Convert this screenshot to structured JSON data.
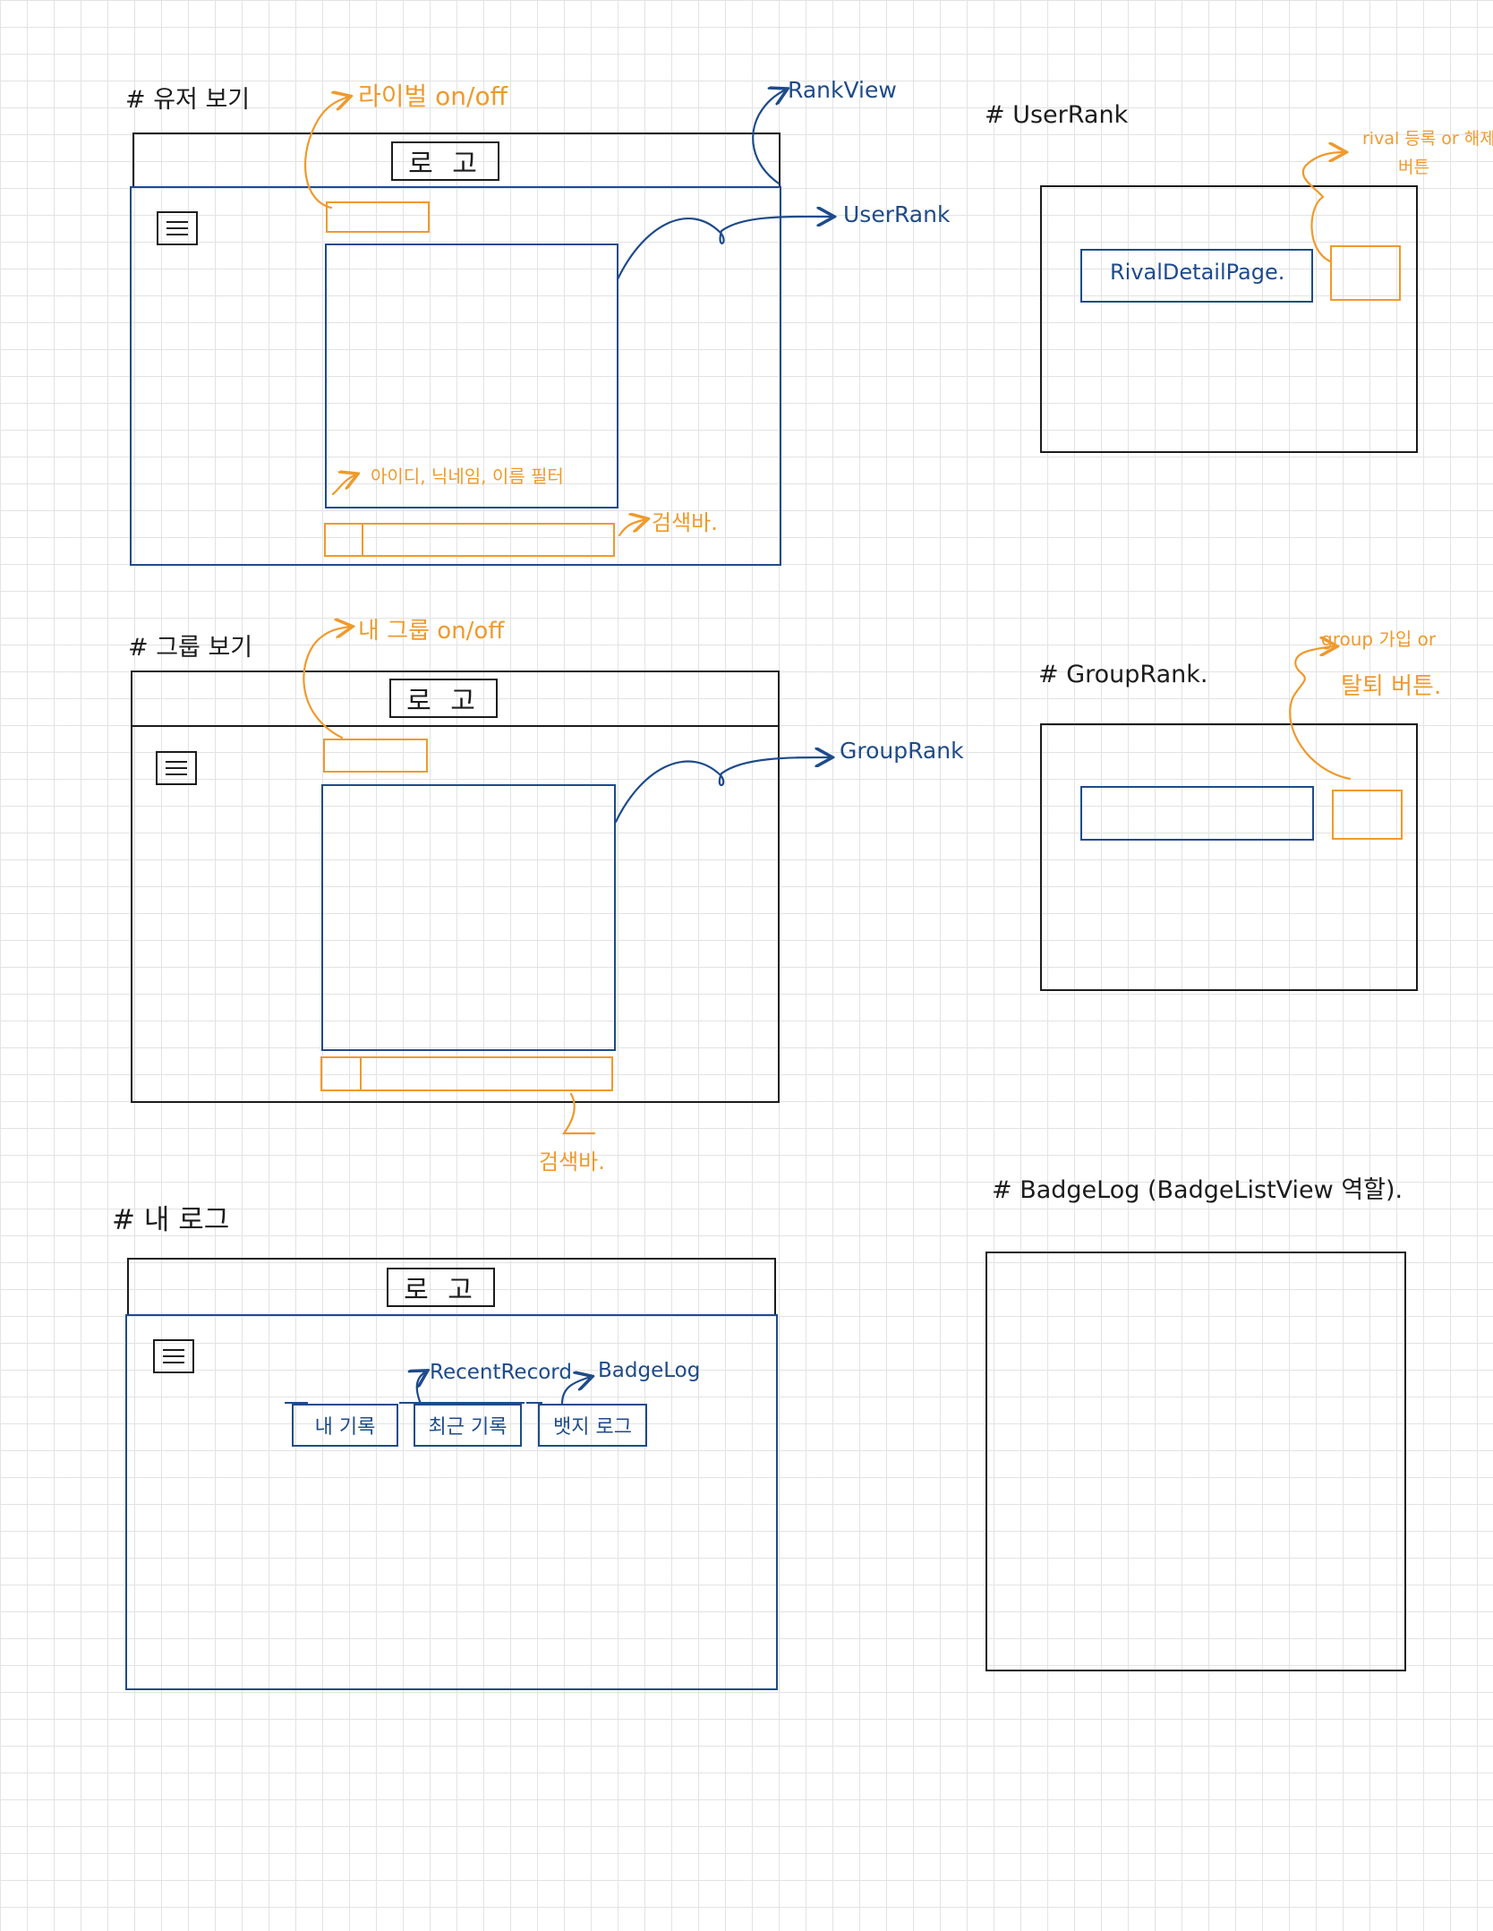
{
  "user_view": {
    "title": "# 유저 보기",
    "logo": "로 고",
    "rival_toggle_note": "라이벌 on/off",
    "rank_view_note": "RankView",
    "user_rank_note": "UserRank",
    "filter_note": "아이디, 닉네임, 이름 필터",
    "search_note": "검색바."
  },
  "user_rank": {
    "title": "# UserRank",
    "rival_detail_label": "RivalDetailPage.",
    "rival_button_note_line1": "rival 등록 or 해제",
    "rival_button_note_line2": "버튼"
  },
  "group_view": {
    "title": "# 그룹 보기",
    "logo": "로 고",
    "my_group_toggle_note": "내 그룹 on/off",
    "group_rank_note": "GroupRank",
    "search_note": "검색바."
  },
  "group_rank": {
    "title": "# GroupRank.",
    "group_button_note_line1": "group 가입 or",
    "group_button_note_line2": "탈퇴 버튼."
  },
  "my_log": {
    "title": "# 내 로그",
    "logo": "로 고",
    "tabs": [
      "내 기록",
      "최근 기록",
      "뱃지 로그"
    ],
    "recent_record_note": "RecentRecord",
    "badge_log_note": "BadgeLog"
  },
  "badge_log": {
    "title": "# BadgeLog (BadgeListView 역할)."
  },
  "colors": {
    "ink": "#1c1c1c",
    "blue": "#1e4b8a",
    "orange": "#ef9a2c",
    "grid": "#e3e3e3"
  }
}
